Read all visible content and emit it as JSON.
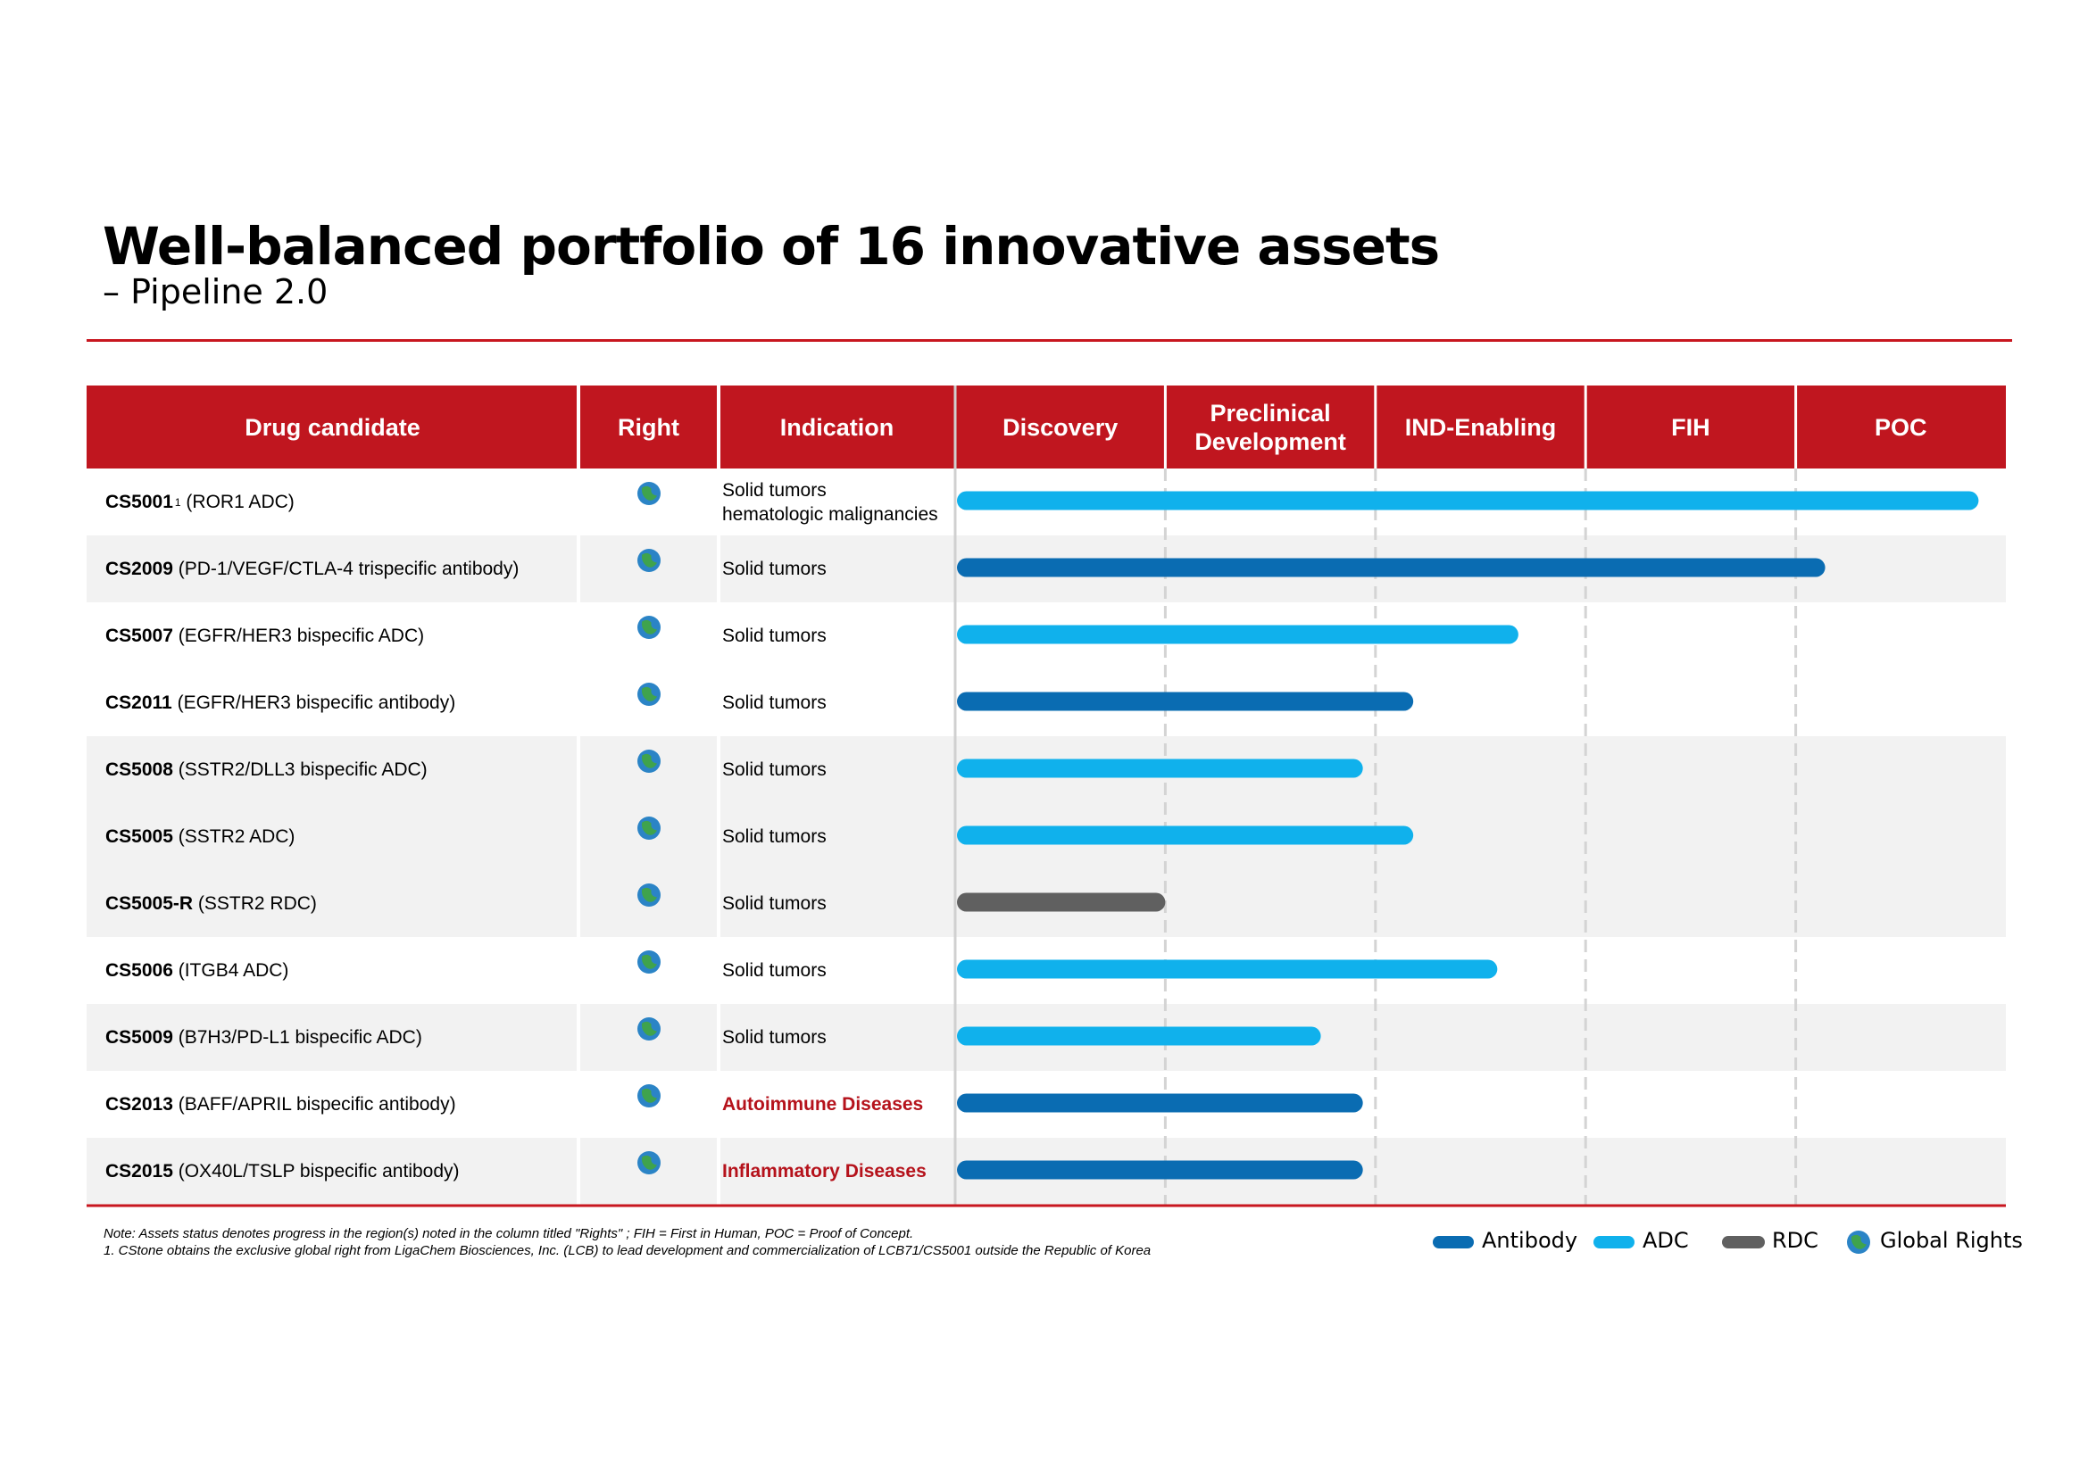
{
  "header": {
    "title": "Well-balanced portfolio of 16 innovative assets",
    "subtitle": "– Pipeline 2.0"
  },
  "table": {
    "columns": [
      "Drug candidate",
      "Right",
      "Indication"
    ],
    "phases": [
      "Discovery",
      "Preclinical Development",
      "IND-Enabling",
      "FIH",
      "POC"
    ],
    "rows": [
      {
        "code": "CS5001",
        "sup": "1",
        "description": "(ROR1 ADC)",
        "indication": [
          "Solid tumors",
          "hematologic malignancies"
        ],
        "indication_color": "#000000",
        "type": 1,
        "progress": 4.87,
        "shaded": false
      },
      {
        "code": "CS2009",
        "description": "(PD-1/VEGF/CTLA-4 trispecific antibody)",
        "indication": [
          "Solid tumors"
        ],
        "indication_color": "#000000",
        "type": 0,
        "progress": 4.14,
        "shaded": true
      },
      {
        "code": "CS5007",
        "description": "(EGFR/HER3 bispecific ADC)",
        "indication": [
          "Solid tumors"
        ],
        "indication_color": "#000000",
        "type": 1,
        "progress": 2.68,
        "shaded": false
      },
      {
        "code": "CS2011",
        "description": "(EGFR/HER3 bispecific antibody)",
        "indication": [
          "Solid tumors"
        ],
        "indication_color": "#000000",
        "type": 0,
        "progress": 2.18,
        "shaded": false
      },
      {
        "code": "CS5008",
        "description": "(SSTR2/DLL3 bispecific ADC)",
        "indication": [
          "Solid tumors"
        ],
        "indication_color": "#000000",
        "type": 1,
        "progress": 1.94,
        "shaded": true
      },
      {
        "code": "CS5005",
        "description": "(SSTR2 ADC)",
        "indication": [
          "Solid tumors"
        ],
        "indication_color": "#000000",
        "type": 1,
        "progress": 2.18,
        "shaded": true
      },
      {
        "code": "CS5005-R",
        "description": "(SSTR2 RDC)",
        "indication": [
          "Solid tumors"
        ],
        "indication_color": "#000000",
        "type": 2,
        "progress": 1.0,
        "shaded": true
      },
      {
        "code": "CS5006",
        "description": "(ITGB4 ADC)",
        "indication": [
          "Solid tumors"
        ],
        "indication_color": "#000000",
        "type": 1,
        "progress": 2.58,
        "shaded": false
      },
      {
        "code": "CS5009",
        "description": "(B7H3/PD-L1 bispecific ADC)",
        "indication": [
          "Solid tumors"
        ],
        "indication_color": "#000000",
        "type": 1,
        "progress": 1.74,
        "shaded": true
      },
      {
        "code": "CS2013",
        "description": "(BAFF/APRIL bispecific antibody)",
        "indication": [
          "Autoimmune Diseases"
        ],
        "indication_color": "#b5121b",
        "type": 0,
        "progress": 1.94,
        "shaded": false
      },
      {
        "code": "CS2015",
        "description": "(OX40L/TSLP bispecific antibody)",
        "indication": [
          "Inflammatory Diseases"
        ],
        "indication_color": "#b5121b",
        "type": 0,
        "progress": 1.94,
        "shaded": true
      }
    ]
  },
  "legend": {
    "types": [
      {
        "name": "Antibody",
        "color": "#0a6cb2"
      },
      {
        "name": "ADC",
        "color": "#10b1ec"
      },
      {
        "name": "RDC",
        "color": "#606060"
      }
    ],
    "global_rights": "Global Rights"
  },
  "notes": [
    "Note: Assets status denotes progress in the region(s) noted in the column titled \"Rights\" ; FIH = First in Human, POC = Proof of Concept.",
    "1. CStone obtains the exclusive global right from LigaChem Biosciences, Inc. (LCB) to lead development and commercialization of LCB71/CS5001 outside the Republic of Korea"
  ]
}
